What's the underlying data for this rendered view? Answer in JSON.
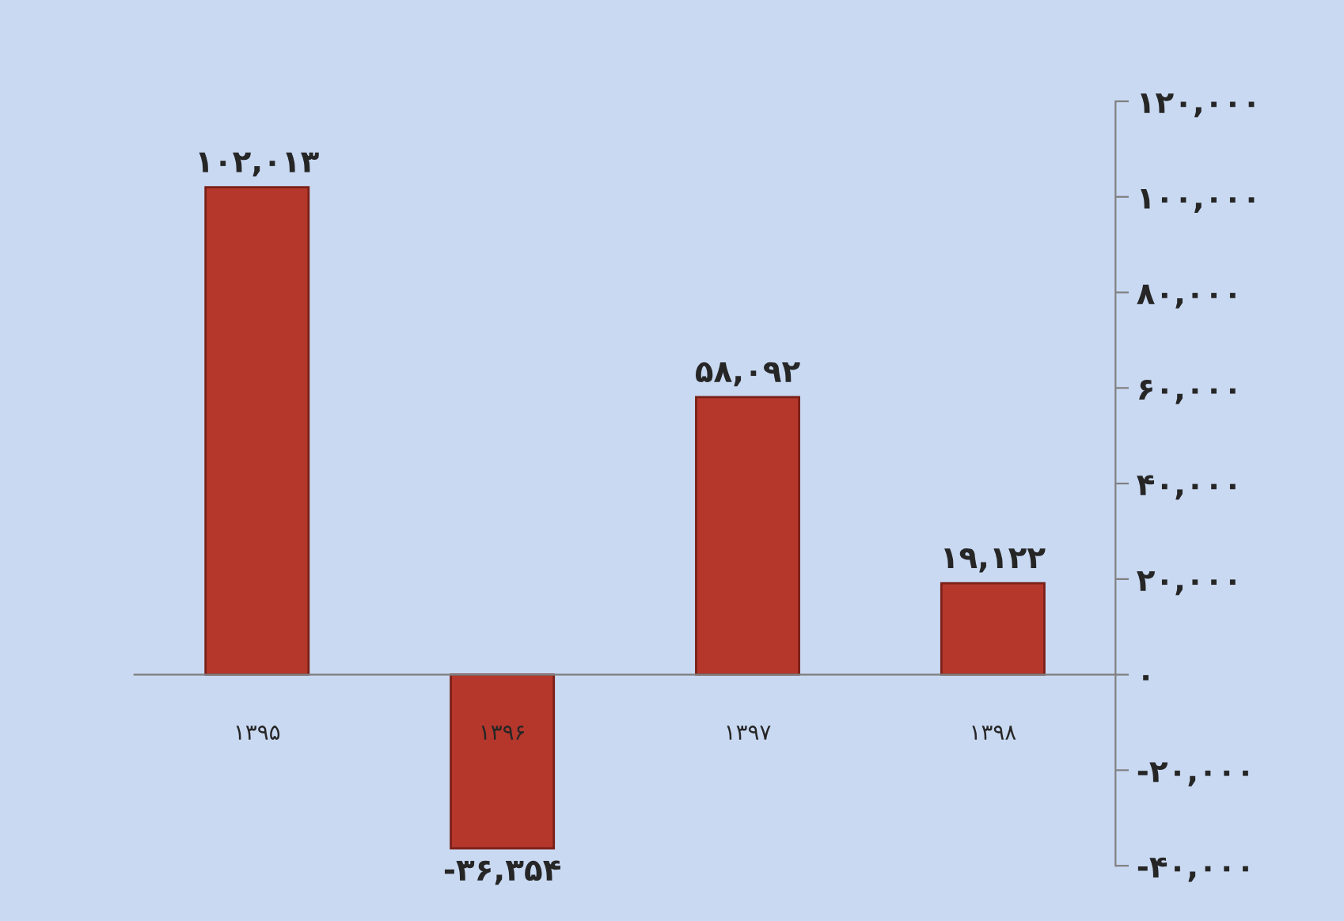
{
  "chart_data": {
    "type": "bar",
    "categories": [
      "۱۳۹۵",
      "۱۳۹۶",
      "۱۳۹۷",
      "۱۳۹۸"
    ],
    "values": [
      102013,
      -36354,
      58092,
      19122
    ],
    "color": "#b5372c",
    "value_labels": [
      "۱۰۲,۰۱۳",
      "-۳۶,۳۵۴",
      "۵۸,۰۹۲",
      "۱۹,۱۲۲"
    ],
    "ylim": [
      -40000,
      120000
    ],
    "yticks": [
      {
        "value": -40000,
        "label": "-۴۰,۰۰۰"
      },
      {
        "value": -20000,
        "label": "-۲۰,۰۰۰"
      },
      {
        "value": 0,
        "label": "۰"
      },
      {
        "value": 20000,
        "label": "۲۰,۰۰۰"
      },
      {
        "value": 40000,
        "label": "۴۰,۰۰۰"
      },
      {
        "value": 60000,
        "label": "۶۰,۰۰۰"
      },
      {
        "value": 80000,
        "label": "۸۰,۰۰۰"
      },
      {
        "value": 100000,
        "label": "۱۰۰,۰۰۰"
      },
      {
        "value": 120000,
        "label": "۱۲۰,۰۰۰"
      }
    ],
    "grid": false
  }
}
